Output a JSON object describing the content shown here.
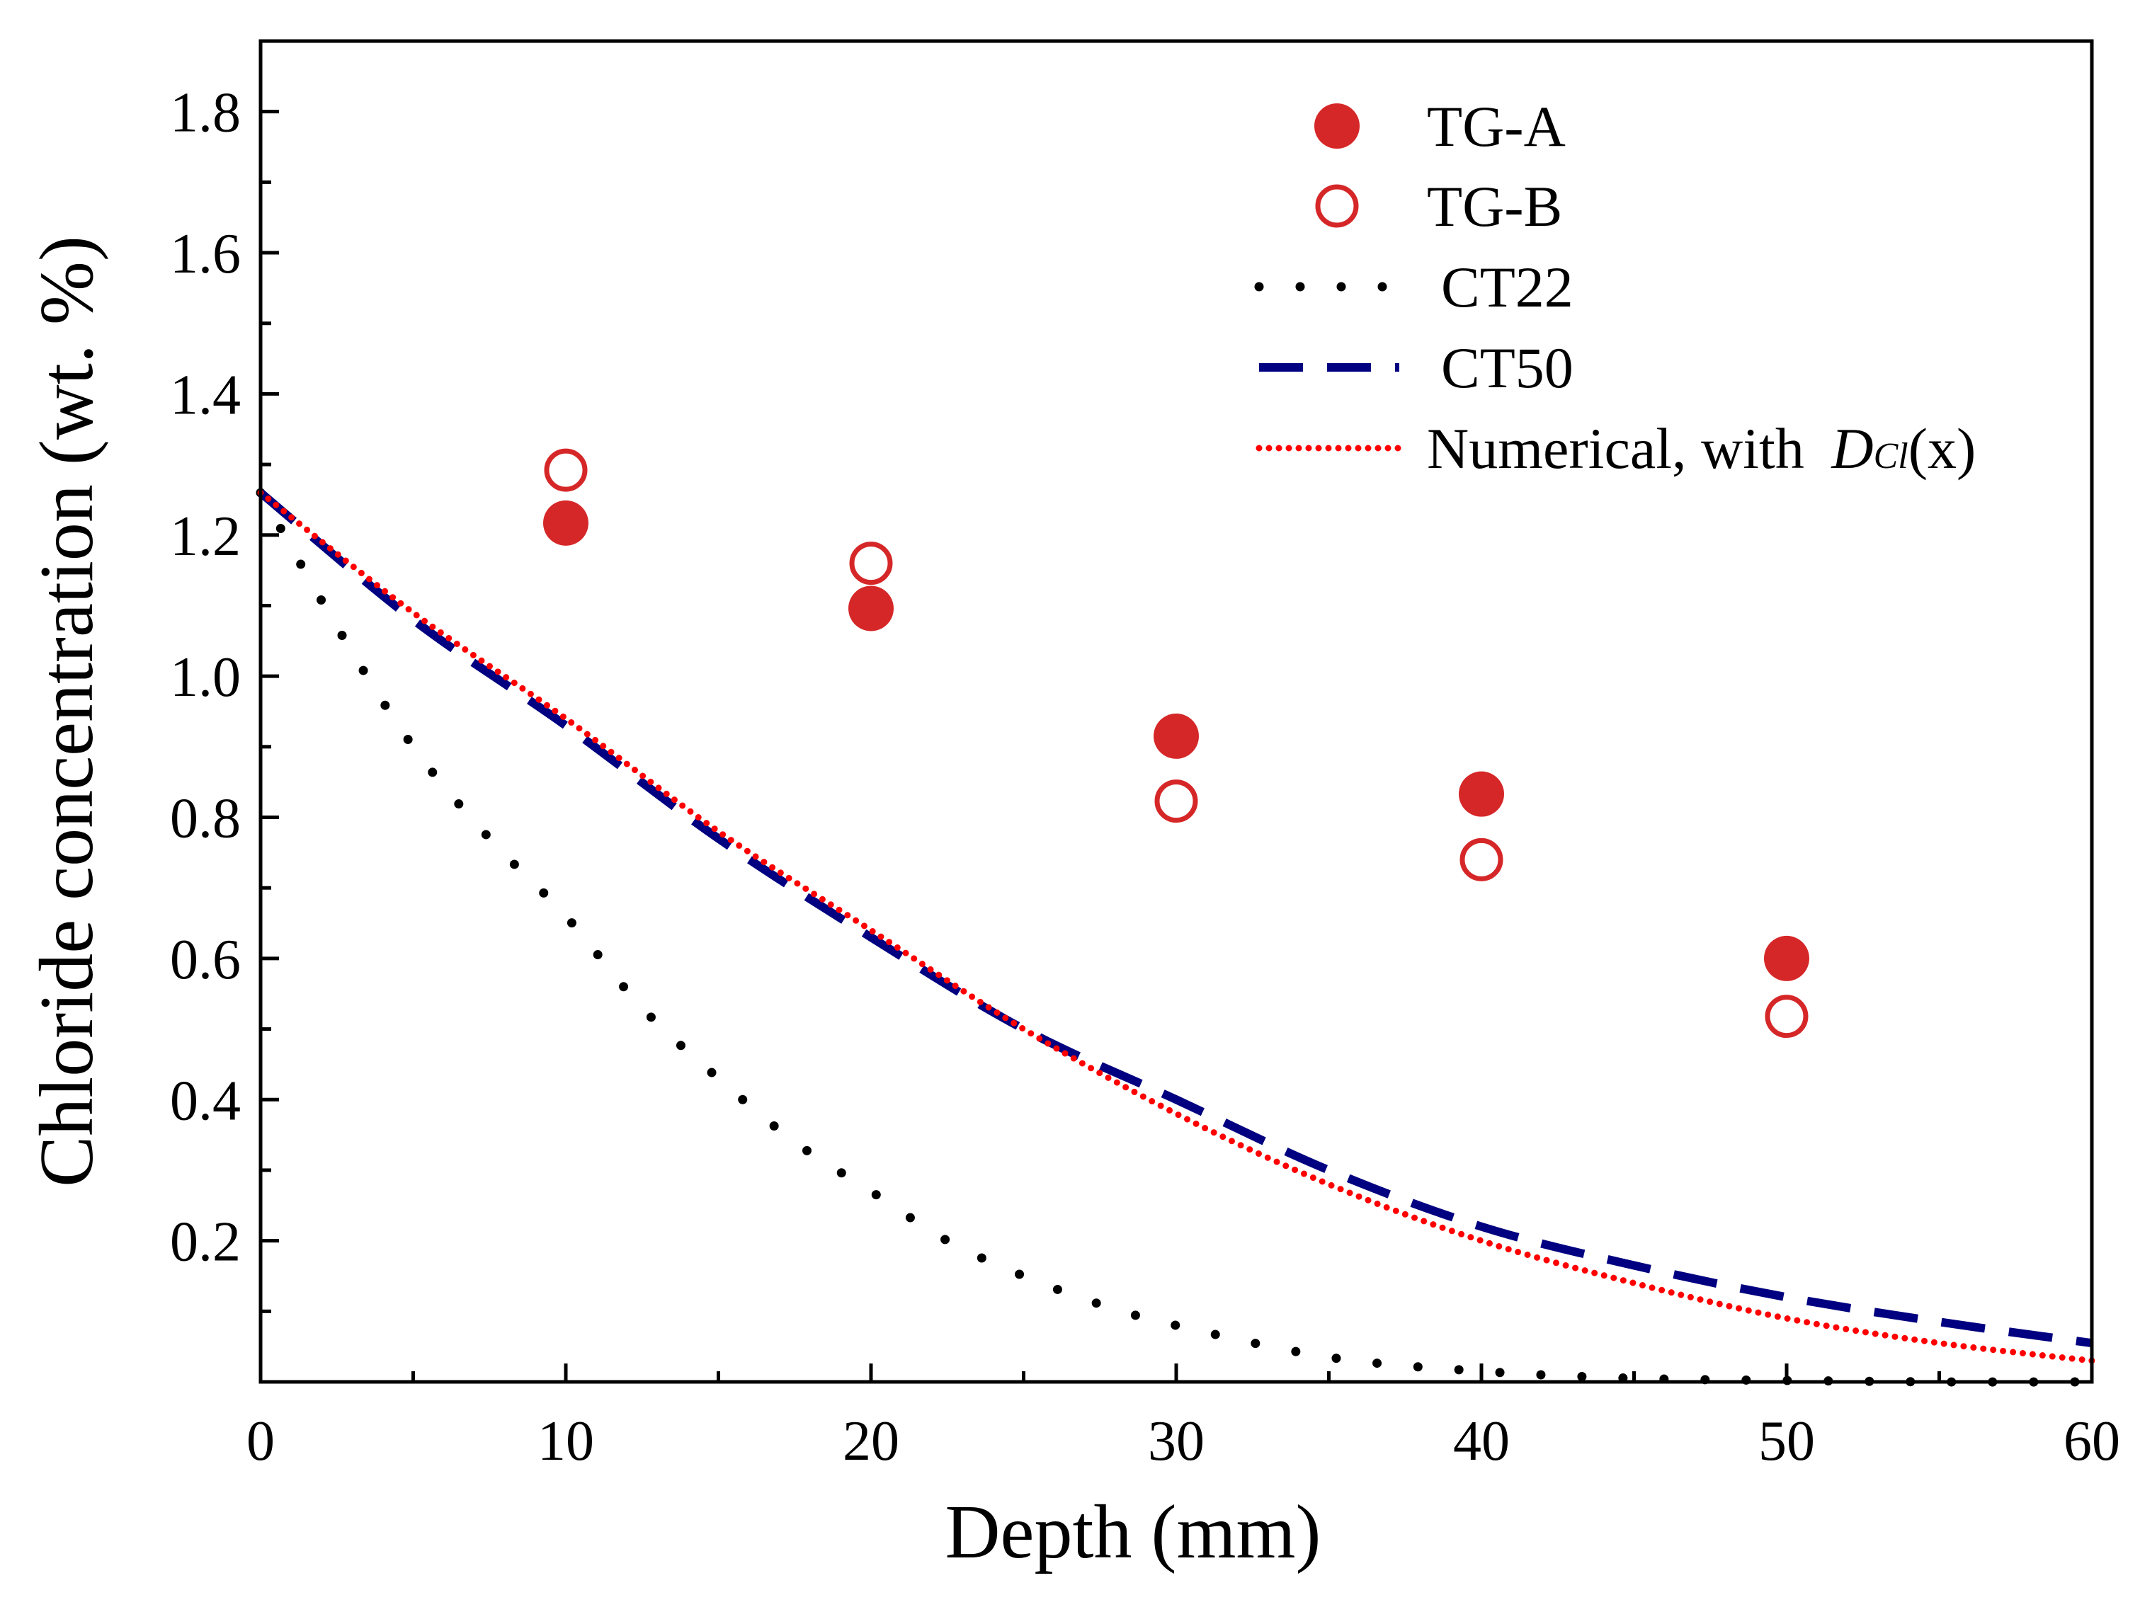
{
  "chart_data": {
    "type": "scatter",
    "title": "",
    "xlabel": "Depth (mm)",
    "ylabel": "Chloride concentration (wt. %)",
    "xlim": [
      0,
      60
    ],
    "ylim": [
      0,
      1.9
    ],
    "xticks": [
      0,
      10,
      20,
      30,
      40,
      50,
      60
    ],
    "xtick_labels": [
      "0",
      "10",
      "20",
      "30",
      "40",
      "50",
      "60"
    ],
    "yticks": [
      0.2,
      0.4,
      0.6,
      0.8,
      1.0,
      1.2,
      1.4,
      1.6,
      1.8
    ],
    "ytick_labels": [
      "0.2",
      "0.4",
      "0.6",
      "0.8",
      "1.0",
      "1.2",
      "1.4",
      "1.6",
      "1.8"
    ],
    "grid": false,
    "legend_position": "top-right",
    "series": [
      {
        "name": "TG-A",
        "kind": "scatter-filled",
        "color": "#d62728",
        "x": [
          10,
          20,
          30,
          40,
          50
        ],
        "y": [
          1.217,
          1.096,
          0.915,
          0.833,
          0.6
        ]
      },
      {
        "name": "TG-B",
        "kind": "scatter-open",
        "color": "#d62728",
        "x": [
          10,
          20,
          30,
          40,
          50
        ],
        "y": [
          1.292,
          1.16,
          0.823,
          0.74,
          0.518
        ]
      },
      {
        "name": "CT22",
        "kind": "line-dotted",
        "color": "#000000",
        "x": [
          0,
          2.5,
          5,
          7.5,
          10,
          12.5,
          15,
          17.5,
          20,
          22.5,
          25,
          27.5,
          30,
          35,
          40,
          45,
          50,
          55,
          60
        ],
        "y": [
          1.26,
          1.07,
          0.9,
          0.77,
          0.66,
          0.53,
          0.43,
          0.34,
          0.27,
          0.2,
          0.15,
          0.11,
          0.08,
          0.035,
          0.015,
          0.005,
          0.002,
          0.0,
          0.0
        ]
      },
      {
        "name": "CT50",
        "kind": "line-dashed",
        "color": "#000080",
        "x": [
          0,
          5,
          10,
          15,
          20,
          25,
          30,
          35,
          40,
          45,
          50,
          55,
          60
        ],
        "y": [
          1.26,
          1.08,
          0.93,
          0.77,
          0.63,
          0.5,
          0.4,
          0.3,
          0.22,
          0.165,
          0.12,
          0.085,
          0.055
        ]
      },
      {
        "name": "Numerical, with ",
        "name_math": "D",
        "name_sub": "Cl",
        "name_tail": "(x)",
        "kind": "line-dense-dotted",
        "color": "#ff0000",
        "x": [
          0,
          5,
          10,
          15,
          20,
          25,
          30,
          35,
          40,
          45,
          50,
          55,
          60
        ],
        "y": [
          1.26,
          1.09,
          0.94,
          0.78,
          0.64,
          0.5,
          0.38,
          0.28,
          0.2,
          0.14,
          0.09,
          0.055,
          0.03
        ]
      }
    ]
  }
}
